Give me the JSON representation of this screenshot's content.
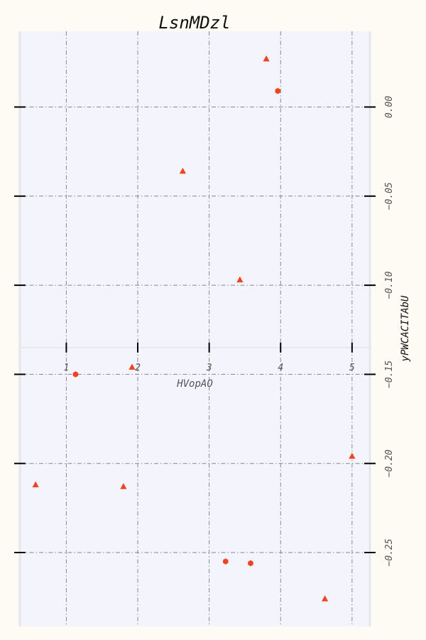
{
  "chart_data": {
    "type": "scatter",
    "title": "LsnMDzl",
    "xlabel": "HVopAO",
    "ylabel": "yPWCACITAbU",
    "xlim": [
      0.35,
      5.25
    ],
    "ylim": [
      -0.2915,
      0.0425
    ],
    "x_ticks": [
      1,
      2,
      3,
      4,
      5
    ],
    "x_tick_labels": [
      "1",
      "2",
      "3",
      "4",
      "5"
    ],
    "y_ticks": [
      0.0,
      -0.05,
      -0.1,
      -0.15,
      -0.2,
      -0.25
    ],
    "y_tick_labels": [
      "0.00",
      "−0.05",
      "−0.10",
      "−0.15",
      "−0.20",
      "−0.25"
    ],
    "x_axis_position_y": -0.135,
    "grid": true,
    "colors": {
      "marker": "#ee4422",
      "plot_bg": "#f4f5fc",
      "grid": "#888888",
      "page_bg": "#fefaf4"
    },
    "series": [
      {
        "marker": "triangle",
        "points": [
          {
            "x": 3.8,
            "y": 0.027
          },
          {
            "x": 2.63,
            "y": -0.036
          },
          {
            "x": 3.43,
            "y": -0.097
          },
          {
            "x": 1.92,
            "y": -0.146
          },
          {
            "x": 5.0,
            "y": -0.196
          },
          {
            "x": 0.57,
            "y": -0.212
          },
          {
            "x": 1.8,
            "y": -0.213
          },
          {
            "x": 4.62,
            "y": -0.276
          }
        ]
      },
      {
        "marker": "hexagon",
        "points": [
          {
            "x": 3.96,
            "y": 0.009
          },
          {
            "x": 1.13,
            "y": -0.15
          },
          {
            "x": 3.23,
            "y": -0.255
          },
          {
            "x": 3.58,
            "y": -0.256
          }
        ]
      }
    ]
  }
}
